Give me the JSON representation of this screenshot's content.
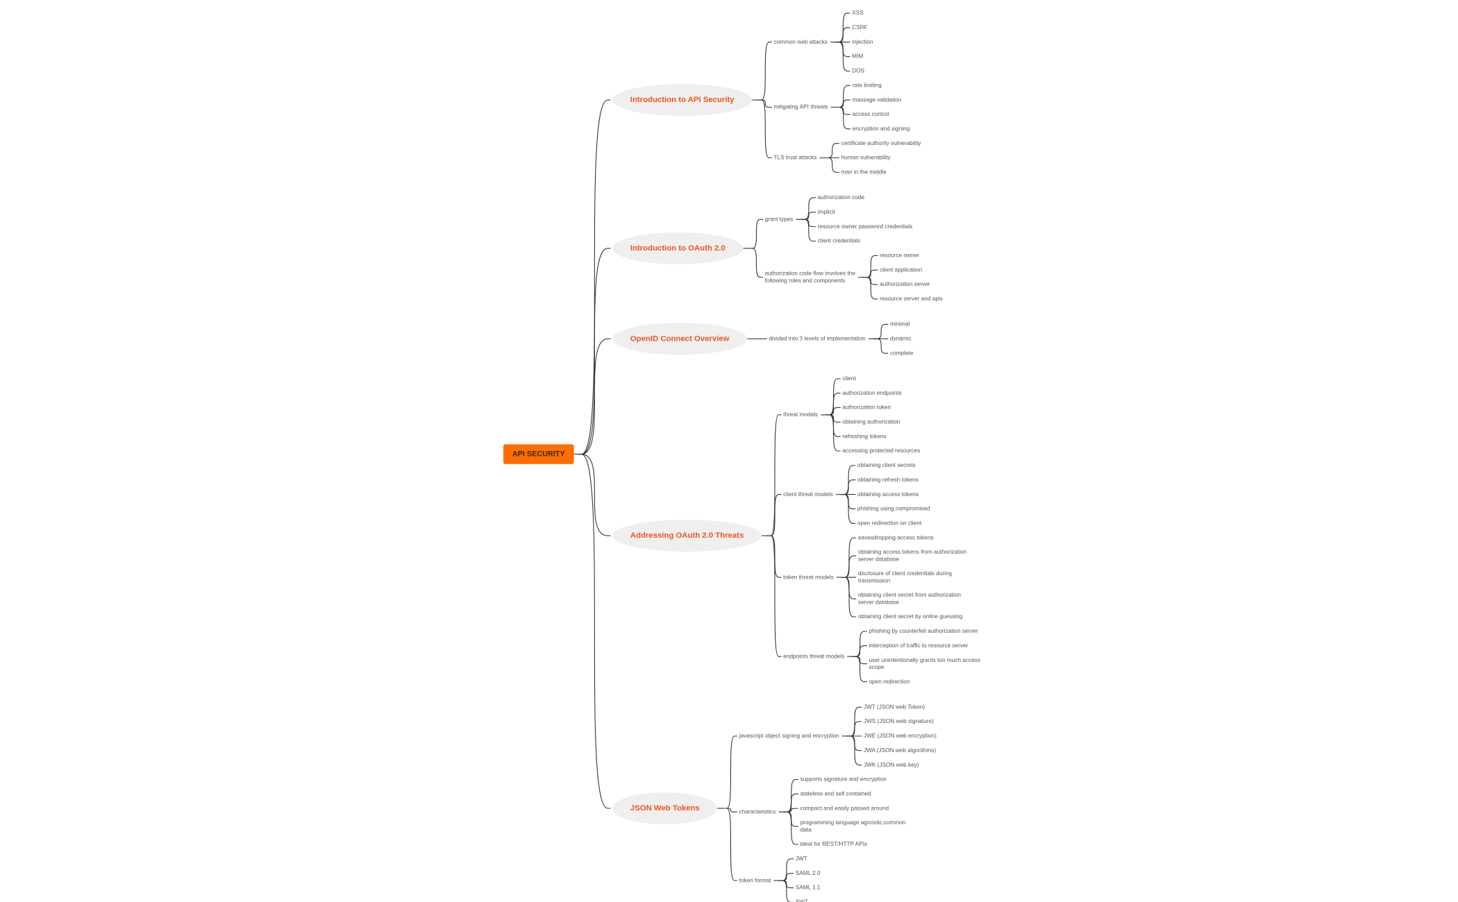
{
  "colors": {
    "root_fill": "#ff6d00",
    "main_text": "#f4511e",
    "main_fill": "#efefef",
    "line": "#333333",
    "leaf_text": "#555555"
  },
  "root": {
    "label": "API SECURITY"
  },
  "branches": [
    {
      "label": "Introduction to API Security",
      "children": [
        {
          "label": "common web attacks",
          "children": [
            "XSS",
            "CSRF",
            "injection",
            "MIM",
            "DOS"
          ]
        },
        {
          "label": "mitigating API threats",
          "children": [
            "rate limiting",
            "massage validation",
            "access control",
            "encryption and signing"
          ]
        },
        {
          "label": "TLS trust attacks",
          "children": [
            "certificate authority vulnerability",
            "human vulnerability",
            "man in the middle"
          ]
        }
      ]
    },
    {
      "label": "Introduction to OAuth 2.0",
      "children": [
        {
          "label": "grant types",
          "children": [
            "authorization code",
            "implicit",
            "resource owner password credentials",
            "client credentials"
          ]
        },
        {
          "label": "authorization code flow involves the\nfollowing roles and components",
          "children": [
            "resource owner",
            "client application",
            "authorization server",
            "resource server and apis"
          ]
        }
      ]
    },
    {
      "label": "OpenID Connect Overview",
      "children": [
        {
          "label": "divided into 3 levels of implementation",
          "children": [
            "minimal",
            "dynamic",
            "complete"
          ]
        }
      ]
    },
    {
      "label": "Addressing OAuth 2.0 Threats",
      "children": [
        {
          "label": "threat models",
          "children": [
            "client",
            "authorization endpoints",
            "authorization token",
            "obtaining authorization",
            "refreshing tokens",
            "accessing protected resources"
          ]
        },
        {
          "label": "client threat models",
          "children": [
            "obtaining client secrets",
            "obtaining refresh tokens",
            "obtaining access tokens",
            "phishing  using compromised",
            "open redirection on client"
          ]
        },
        {
          "label": "token threat models",
          "children": [
            "eavesdropping access tokens",
            "obtaining access tokens from authorization\nserver database",
            "disclosure of client credentials during\ntransmission",
            "obtaining client secret from authorization\nserver database",
            "obtaining client secret by online guessing"
          ]
        },
        {
          "label": "endpoints threat models",
          "children": [
            "phishing by counterfeit authorization server",
            "interception of traffic to resource server",
            "user unintentionally grants too much access\nscope",
            "open redirection"
          ]
        }
      ]
    },
    {
      "label": "JSON Web Tokens",
      "children": [
        {
          "label": "javascript object signing and encryption",
          "children": [
            "JWT (JSON web Token)",
            "JWS  (JSON web signature)",
            "JWE  (JSON web encryption)",
            "JWA  (JSON web algorithms)",
            "JWK  (JSON web key)"
          ]
        },
        {
          "label": "characteristics",
          "children": [
            "supports signature and encryption",
            "stateless and self contained",
            "compact and easily passed around",
            "programming language agnostic,common\ndata",
            "ideal for REST/HTTP APIs"
          ]
        },
        {
          "label": "token format",
          "children": [
            "JWT",
            "SAML 2.0",
            "SAML 1.1",
            "SWT"
          ]
        }
      ]
    }
  ]
}
